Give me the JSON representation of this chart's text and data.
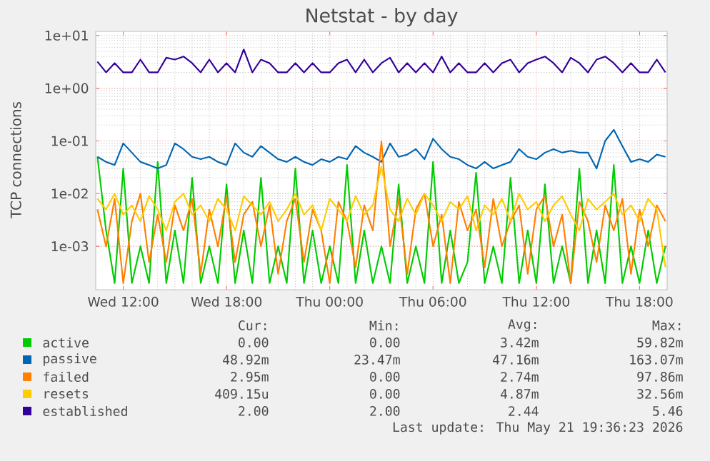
{
  "chart_data": {
    "type": "line",
    "title": "Netstat - by day",
    "ylabel": "TCP connections",
    "log": true,
    "grid": true,
    "legend": "bottom",
    "xlim": [
      "2026-05-20T10:24",
      "2026-05-21T19:36"
    ],
    "xticks": [
      {
        "value": "2026-05-20T12:00",
        "label": "Wed 12:00"
      },
      {
        "value": "2026-05-20T18:00",
        "label": "Wed 18:00"
      },
      {
        "value": "2026-05-21T00:00",
        "label": "Thu 00:00"
      },
      {
        "value": "2026-05-21T06:00",
        "label": "Thu 06:00"
      },
      {
        "value": "2026-05-21T12:00",
        "label": "Thu 12:00"
      },
      {
        "value": "2026-05-21T18:00",
        "label": "Thu 18:00"
      }
    ],
    "ylim": [
      0.00015,
      12
    ],
    "yticks": [
      {
        "value": 0.001,
        "label": "1e-03"
      },
      {
        "value": 0.01,
        "label": "1e-02"
      },
      {
        "value": 0.1,
        "label": "1e-01"
      },
      {
        "value": 1,
        "label": "1e+00"
      },
      {
        "value": 10,
        "label": "1e+01"
      }
    ],
    "x": [
      "2026-05-20T10:30",
      "2026-05-20T11:00",
      "2026-05-20T11:30",
      "2026-05-20T12:00",
      "2026-05-20T12:30",
      "2026-05-20T13:00",
      "2026-05-20T13:30",
      "2026-05-20T14:00",
      "2026-05-20T14:30",
      "2026-05-20T15:00",
      "2026-05-20T15:30",
      "2026-05-20T16:00",
      "2026-05-20T16:30",
      "2026-05-20T17:00",
      "2026-05-20T17:30",
      "2026-05-20T18:00",
      "2026-05-20T18:30",
      "2026-05-20T19:00",
      "2026-05-20T19:30",
      "2026-05-20T20:00",
      "2026-05-20T20:30",
      "2026-05-20T21:00",
      "2026-05-20T21:30",
      "2026-05-20T22:00",
      "2026-05-20T22:30",
      "2026-05-20T23:00",
      "2026-05-20T23:30",
      "2026-05-21T00:00",
      "2026-05-21T00:30",
      "2026-05-21T01:00",
      "2026-05-21T01:30",
      "2026-05-21T02:00",
      "2026-05-21T02:30",
      "2026-05-21T03:00",
      "2026-05-21T03:30",
      "2026-05-21T04:00",
      "2026-05-21T04:30",
      "2026-05-21T05:00",
      "2026-05-21T05:30",
      "2026-05-21T06:00",
      "2026-05-21T06:30",
      "2026-05-21T07:00",
      "2026-05-21T07:30",
      "2026-05-21T08:00",
      "2026-05-21T08:30",
      "2026-05-21T09:00",
      "2026-05-21T09:30",
      "2026-05-21T10:00",
      "2026-05-21T10:30",
      "2026-05-21T11:00",
      "2026-05-21T11:30",
      "2026-05-21T12:00",
      "2026-05-21T12:30",
      "2026-05-21T13:00",
      "2026-05-21T13:30",
      "2026-05-21T14:00",
      "2026-05-21T14:30",
      "2026-05-21T15:00",
      "2026-05-21T15:30",
      "2026-05-21T16:00",
      "2026-05-21T16:30",
      "2026-05-21T17:00",
      "2026-05-21T17:30",
      "2026-05-21T18:00",
      "2026-05-21T18:30",
      "2026-05-21T19:00",
      "2026-05-21T19:30"
    ],
    "series": [
      {
        "name": "active",
        "color": "#00cc00",
        "values": [
          0.05,
          0.002,
          0.0002,
          0.03,
          0.0002,
          0.001,
          0.0002,
          0.04,
          0.0002,
          0.002,
          0.0002,
          0.02,
          0.0002,
          0.001,
          0.0002,
          0.015,
          0.0002,
          0.002,
          0.0002,
          0.02,
          0.0002,
          0.001,
          0.0002,
          0.03,
          0.0002,
          0.002,
          0.0002,
          0.001,
          0.0002,
          0.035,
          0.0002,
          0.002,
          0.0002,
          0.001,
          0.0002,
          0.015,
          0.0002,
          0.001,
          0.0002,
          0.04,
          0.0002,
          0.002,
          0.0002,
          0.0005,
          0.025,
          0.0002,
          0.001,
          0.0002,
          0.02,
          0.0002,
          0.002,
          0.0002,
          0.015,
          0.0002,
          0.001,
          0.0002,
          0.03,
          0.0002,
          0.002,
          0.0002,
          0.035,
          0.0002,
          0.001,
          0.0002,
          0.002,
          0.0002,
          0.001
        ]
      },
      {
        "name": "passive",
        "color": "#0066b3",
        "values": [
          0.05,
          0.04,
          0.035,
          0.09,
          0.06,
          0.04,
          0.035,
          0.03,
          0.035,
          0.09,
          0.07,
          0.05,
          0.045,
          0.05,
          0.04,
          0.035,
          0.09,
          0.06,
          0.05,
          0.08,
          0.06,
          0.045,
          0.04,
          0.05,
          0.04,
          0.035,
          0.045,
          0.04,
          0.05,
          0.045,
          0.08,
          0.06,
          0.05,
          0.04,
          0.09,
          0.05,
          0.055,
          0.07,
          0.045,
          0.11,
          0.07,
          0.05,
          0.045,
          0.035,
          0.03,
          0.04,
          0.03,
          0.035,
          0.04,
          0.07,
          0.05,
          0.045,
          0.06,
          0.07,
          0.06,
          0.065,
          0.06,
          0.06,
          0.03,
          0.1,
          0.163,
          0.08,
          0.04,
          0.045,
          0.04,
          0.055,
          0.05
        ]
      },
      {
        "name": "failed",
        "color": "#ff8000",
        "values": [
          0.005,
          0.001,
          0.008,
          0.0002,
          0.003,
          0.01,
          0.0005,
          0.004,
          0.0005,
          0.006,
          0.002,
          0.008,
          0.0003,
          0.005,
          0.001,
          0.009,
          0.0005,
          0.004,
          0.007,
          0.001,
          0.006,
          0.0003,
          0.003,
          0.008,
          0.0005,
          0.005,
          0.002,
          0.0002,
          0.007,
          0.003,
          0.0004,
          0.006,
          0.002,
          0.0979,
          0.001,
          0.008,
          0.0003,
          0.005,
          0.01,
          0.001,
          0.004,
          0.0002,
          0.007,
          0.002,
          0.005,
          0.0004,
          0.008,
          0.001,
          0.003,
          0.006,
          0.0003,
          0.005,
          0.009,
          0.001,
          0.004,
          0.0002,
          0.007,
          0.003,
          0.0005,
          0.006,
          0.002,
          0.008,
          0.0003,
          0.005,
          0.001,
          0.006,
          0.003
        ]
      },
      {
        "name": "resets",
        "color": "#ffcc00",
        "values": [
          0.008,
          0.005,
          0.01,
          0.004,
          0.006,
          0.003,
          0.009,
          0.005,
          0.002,
          0.007,
          0.01,
          0.004,
          0.006,
          0.003,
          0.008,
          0.005,
          0.002,
          0.009,
          0.006,
          0.004,
          0.007,
          0.003,
          0.005,
          0.01,
          0.004,
          0.006,
          0.002,
          0.008,
          0.005,
          0.003,
          0.009,
          0.004,
          0.006,
          0.0326,
          0.005,
          0.003,
          0.008,
          0.004,
          0.01,
          0.006,
          0.003,
          0.007,
          0.005,
          0.009,
          0.002,
          0.006,
          0.004,
          0.008,
          0.003,
          0.01,
          0.005,
          0.007,
          0.003,
          0.006,
          0.009,
          0.004,
          0.002,
          0.008,
          0.005,
          0.007,
          0.01,
          0.004,
          0.006,
          0.003,
          0.008,
          0.005,
          0.0004
        ]
      },
      {
        "name": "established",
        "color": "#330099",
        "values": [
          3.2,
          2,
          3,
          2,
          2,
          3.5,
          2,
          2,
          3.8,
          3.5,
          4,
          3,
          2,
          3.5,
          2,
          3,
          2,
          5.46,
          2,
          3.5,
          3,
          2,
          2,
          3,
          2,
          3,
          2,
          2,
          3,
          3.5,
          2,
          3.5,
          2,
          3,
          3.8,
          2,
          3,
          2,
          3,
          2,
          4,
          2,
          3,
          2,
          2,
          3,
          2,
          3,
          3.5,
          2,
          3,
          3.5,
          4,
          3,
          2,
          3.8,
          3,
          2,
          3.5,
          4,
          3,
          2,
          3,
          2,
          2,
          3.5,
          2
        ]
      }
    ],
    "annotations": [
      "Cur:",
      "Min:",
      "Avg:",
      "Max:",
      "0.00",
      "0.00",
      "3.42m",
      "59.82m",
      "48.92m",
      "23.47m",
      "47.16m",
      "163.07m",
      "2.95m",
      "0.00",
      "2.74m",
      "97.86m",
      "409.15u",
      "0.00",
      "4.87m",
      "32.56m",
      "2.00",
      "2.00",
      "2.44",
      "5.46",
      "Last update: Thu May 21 19:36:23 2026"
    ]
  }
}
